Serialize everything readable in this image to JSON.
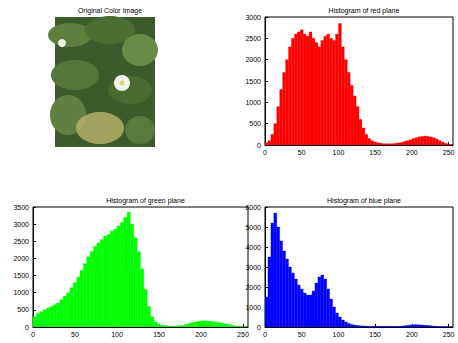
{
  "chart_data": [
    {
      "type": "image",
      "title": "Original Color Image"
    },
    {
      "type": "histogram",
      "title": "Histogram of red plane",
      "color": "#ff0000",
      "bins": [
        0,
        4,
        8,
        12,
        16,
        20,
        24,
        28,
        32,
        36,
        40,
        44,
        48,
        52,
        56,
        60,
        64,
        68,
        72,
        76,
        80,
        84,
        88,
        92,
        96,
        100,
        104,
        108,
        112,
        116,
        120,
        124,
        128,
        132,
        136,
        140,
        144,
        148,
        152,
        156,
        160,
        164,
        168,
        172,
        176,
        180,
        184,
        188,
        192,
        196,
        200,
        204,
        208,
        212,
        216,
        220,
        224,
        228,
        232,
        236,
        240,
        244,
        248,
        252,
        256
      ],
      "values": [
        50,
        100,
        250,
        500,
        900,
        1300,
        1700,
        2000,
        2300,
        2500,
        2600,
        2650,
        2700,
        2600,
        2550,
        2650,
        2500,
        2400,
        2300,
        2450,
        2550,
        2600,
        2500,
        2450,
        2600,
        2850,
        2300,
        2000,
        1700,
        1400,
        1150,
        900,
        600,
        400,
        250,
        150,
        100,
        70,
        50,
        40,
        30,
        30,
        30,
        30,
        40,
        50,
        60,
        80,
        100,
        120,
        150,
        170,
        190,
        200,
        210,
        200,
        190,
        170,
        140,
        100,
        70,
        40,
        20,
        10
      ],
      "xlim": [
        0,
        256
      ],
      "xticks": [
        0,
        50,
        100,
        150,
        200,
        250
      ],
      "ylim": [
        0,
        3000
      ],
      "yticks": [
        0,
        500,
        1000,
        1500,
        2000,
        2500,
        3000
      ],
      "grid": false
    },
    {
      "type": "histogram",
      "title": "Histogram of green plane",
      "color": "#00ff00",
      "bins": [
        0,
        4,
        8,
        12,
        16,
        20,
        24,
        28,
        32,
        36,
        40,
        44,
        48,
        52,
        56,
        60,
        64,
        68,
        72,
        76,
        80,
        84,
        88,
        92,
        96,
        100,
        104,
        108,
        112,
        116,
        120,
        124,
        128,
        132,
        136,
        140,
        144,
        148,
        152,
        156,
        160,
        164,
        168,
        172,
        176,
        180,
        184,
        188,
        192,
        196,
        200,
        204,
        208,
        212,
        216,
        220,
        224,
        228,
        232,
        236,
        240,
        244,
        248,
        252,
        256
      ],
      "values": [
        300,
        400,
        450,
        500,
        550,
        600,
        650,
        700,
        800,
        900,
        1000,
        1150,
        1300,
        1450,
        1650,
        1850,
        2050,
        2200,
        2350,
        2450,
        2550,
        2650,
        2700,
        2800,
        2850,
        2950,
        3050,
        3200,
        3350,
        3000,
        2600,
        2200,
        1700,
        1100,
        600,
        300,
        150,
        80,
        50,
        40,
        30,
        30,
        30,
        40,
        50,
        70,
        100,
        130,
        150,
        170,
        180,
        180,
        170,
        160,
        150,
        130,
        110,
        90,
        70,
        50,
        30,
        20,
        10,
        5
      ],
      "xlim": [
        0,
        256
      ],
      "xticks": [
        0,
        50,
        100,
        150,
        200,
        250
      ],
      "ylim": [
        0,
        3500
      ],
      "yticks": [
        0,
        500,
        1000,
        1500,
        2000,
        2500,
        3000,
        3500
      ],
      "grid": false
    },
    {
      "type": "histogram",
      "title": "Histogram of blue plane",
      "color": "#0000ff",
      "bins": [
        0,
        4,
        8,
        12,
        16,
        20,
        24,
        28,
        32,
        36,
        40,
        44,
        48,
        52,
        56,
        60,
        64,
        68,
        72,
        76,
        80,
        84,
        88,
        92,
        96,
        100,
        104,
        108,
        112,
        116,
        120,
        124,
        128,
        132,
        136,
        140,
        144,
        148,
        152,
        156,
        160,
        164,
        168,
        172,
        176,
        180,
        184,
        188,
        192,
        196,
        200,
        204,
        208,
        212,
        216,
        220,
        224,
        228,
        232,
        236,
        240,
        244,
        248,
        252,
        256
      ],
      "values": [
        1500,
        3500,
        5200,
        5700,
        5000,
        4300,
        3800,
        3400,
        3000,
        2700,
        2400,
        2100,
        1900,
        1700,
        1600,
        1600,
        1800,
        2200,
        2500,
        2600,
        2400,
        1900,
        1400,
        1000,
        700,
        500,
        350,
        250,
        180,
        130,
        100,
        80,
        60,
        50,
        40,
        30,
        30,
        30,
        30,
        30,
        30,
        30,
        30,
        30,
        30,
        30,
        40,
        60,
        80,
        100,
        110,
        120,
        110,
        100,
        90,
        80,
        60,
        40,
        30,
        20,
        15,
        10,
        5,
        5
      ],
      "xlim": [
        0,
        256
      ],
      "xticks": [
        0,
        50,
        100,
        150,
        200,
        250
      ],
      "ylim": [
        0,
        6000
      ],
      "yticks": [
        0,
        1000,
        2000,
        3000,
        4000,
        5000,
        6000
      ],
      "grid": false
    }
  ]
}
